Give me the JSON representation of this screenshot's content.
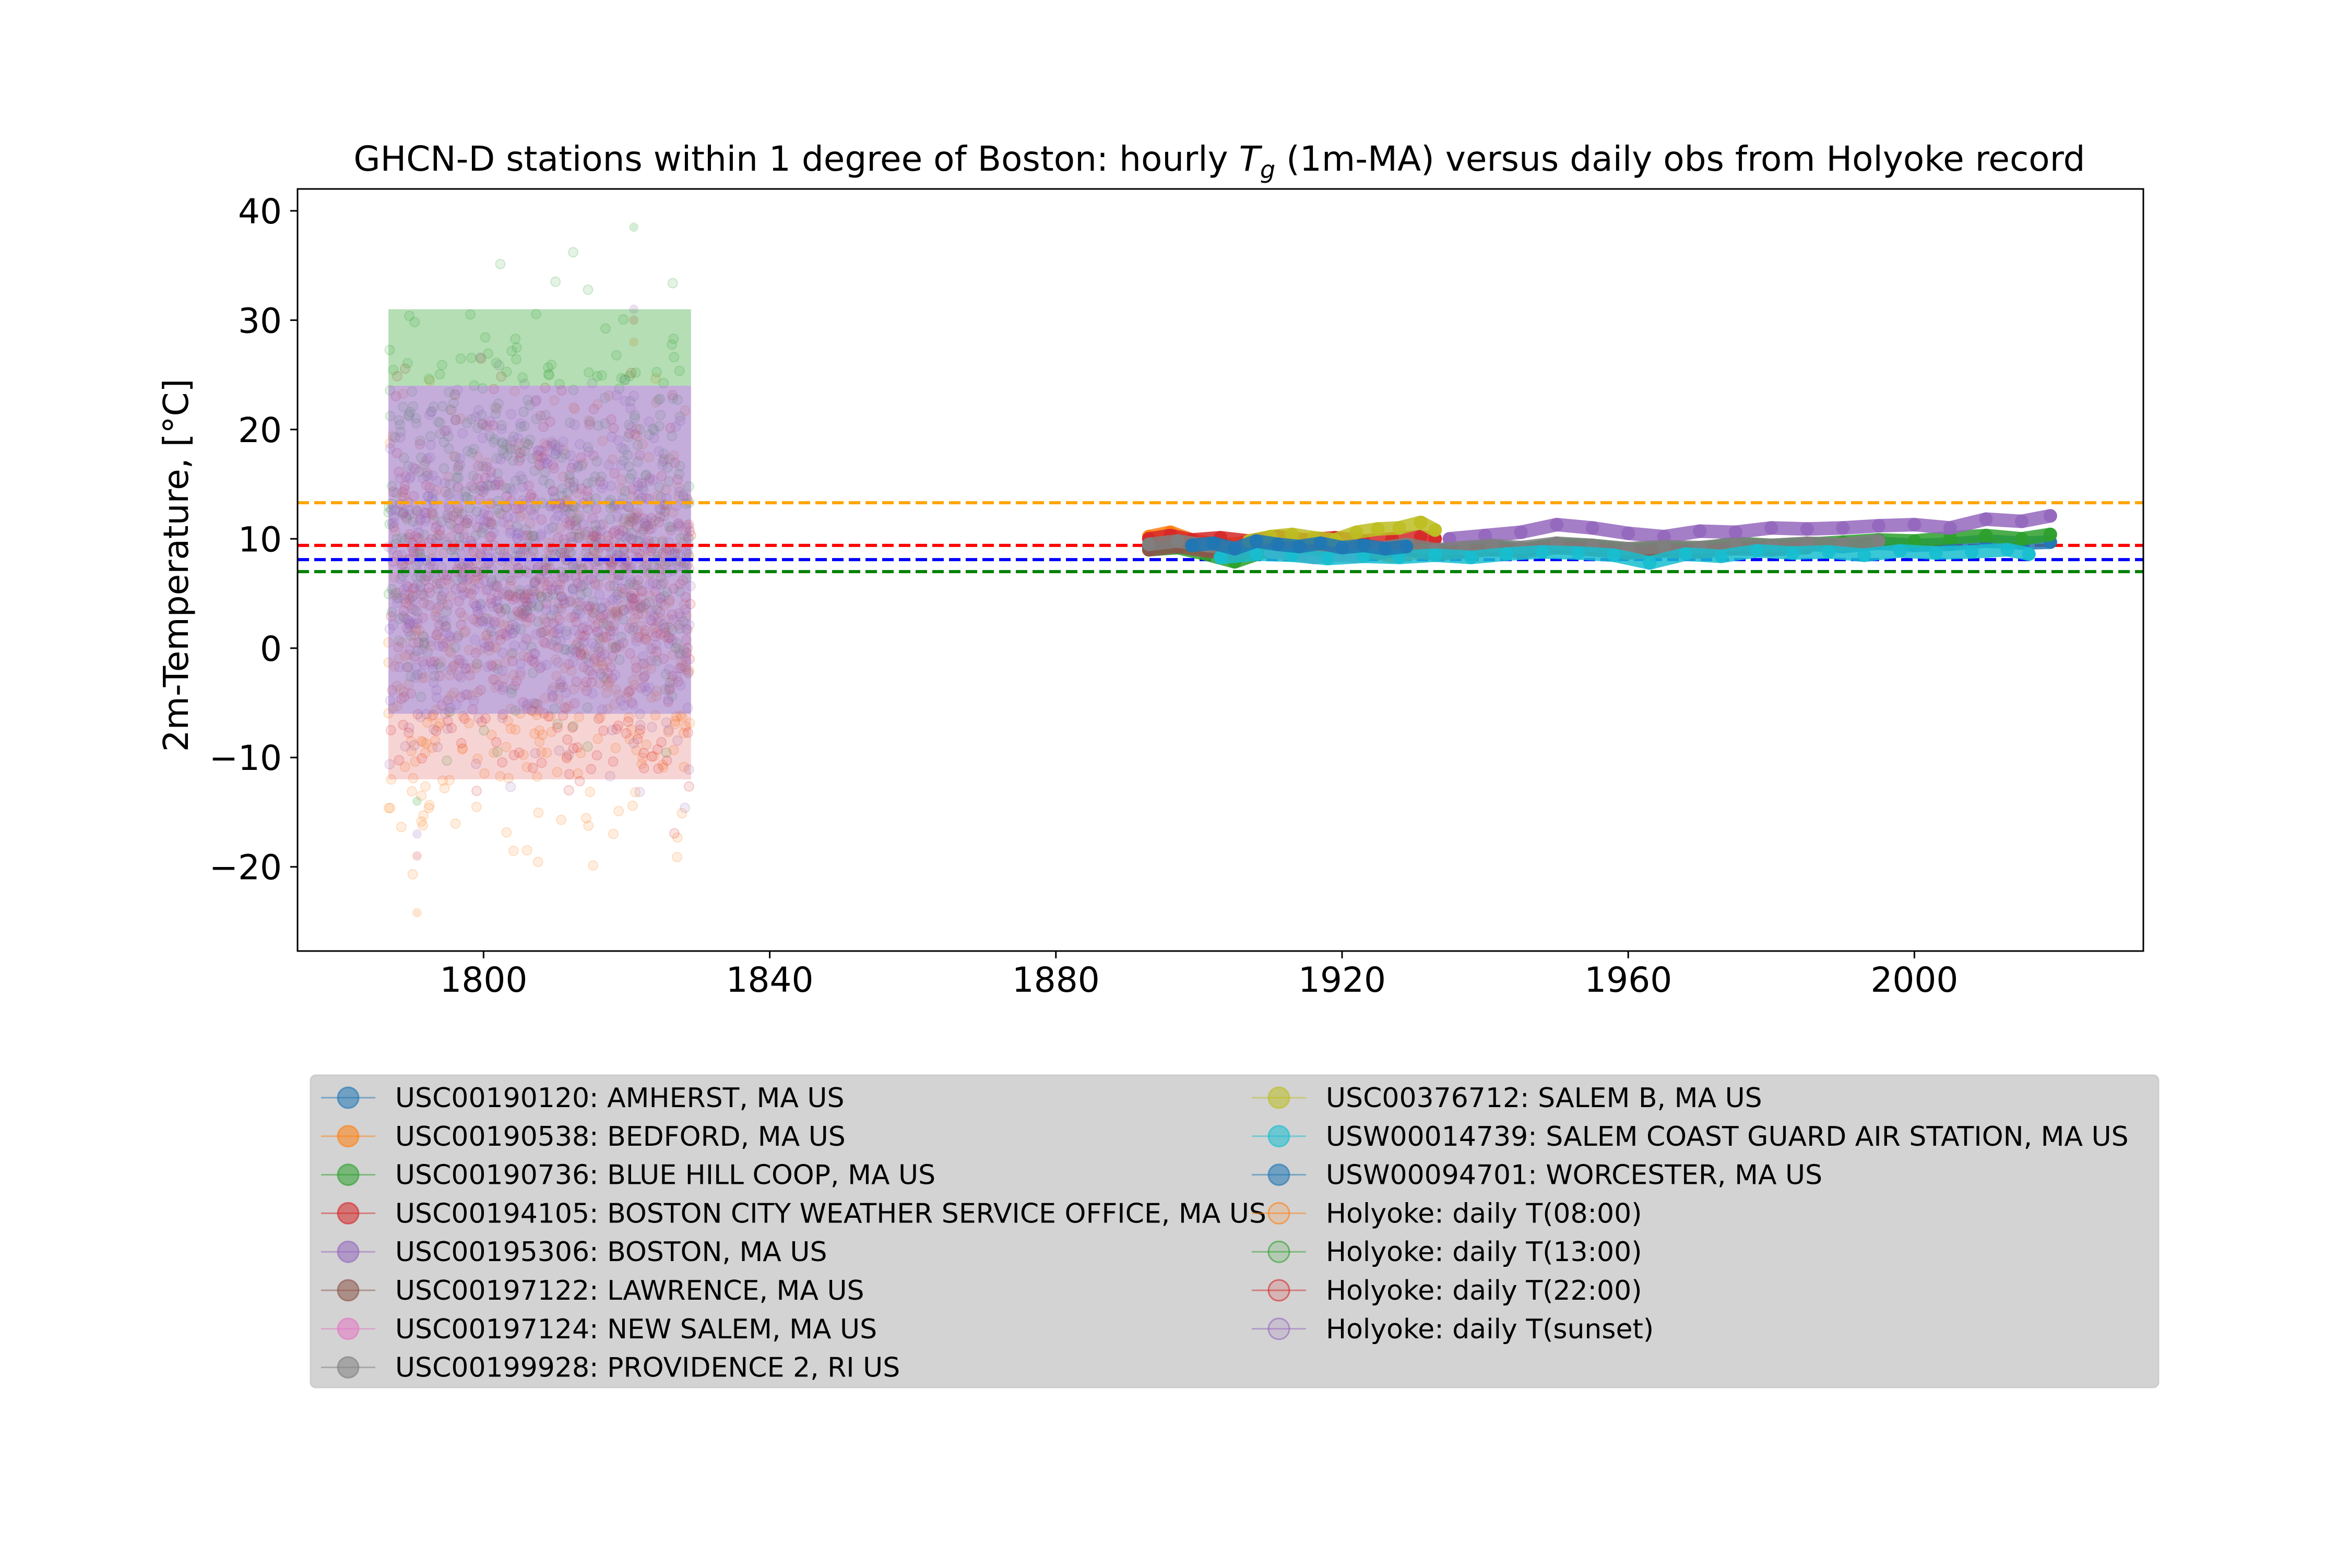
{
  "chart_data": {
    "type": "line",
    "title": {
      "prefix": "GHCN-D stations within 1 degree of Boston: hourly ",
      "symbol": "T",
      "subscript": "g",
      "suffix": " (1m-MA) versus daily obs from Holyoke record"
    },
    "xlabel": "",
    "ylabel": "2m-Temperature, [°C]",
    "xlim": [
      1774,
      2032
    ],
    "ylim": [
      -27.7,
      42.0
    ],
    "xticks": [
      1800,
      1840,
      1880,
      1920,
      1960,
      2000
    ],
    "xtick_labels": [
      "1800",
      "1840",
      "1880",
      "1920",
      "1960",
      "2000"
    ],
    "yticks": [
      -20,
      -10,
      0,
      10,
      20,
      30,
      40
    ],
    "ytick_labels": [
      "−20",
      "−10",
      "0",
      "10",
      "20",
      "30",
      "40"
    ],
    "grid": false,
    "legend_position": "below",
    "legend_background": "#d3d3d3",
    "reference_lines": [
      {
        "color": "#ffa500",
        "y": 13.3
      },
      {
        "color": "#ff0000",
        "y": 9.4
      },
      {
        "color": "#0000ff",
        "y": 8.1
      },
      {
        "color": "#008000",
        "y": 7.0
      }
    ],
    "holyoke_cloud": {
      "x_range": [
        1786.7,
        1829.0
      ],
      "summary": [
        {
          "name": "Holyoke: daily T(08:00)",
          "color": "#ff7f0e",
          "y_min": -24.2,
          "y_max": 28.0
        },
        {
          "name": "Holyoke: daily T(13:00)",
          "color": "#2ca02c",
          "y_min": -14.0,
          "y_max": 38.5
        },
        {
          "name": "Holyoke: daily T(22:00)",
          "color": "#d62728",
          "y_min": -19.0,
          "y_max": 30.0
        },
        {
          "name": "Holyoke: daily T(sunset)",
          "color": "#9467bd",
          "y_min": -17.0,
          "y_max": 31.0
        }
      ]
    },
    "series": [
      {
        "name": "USC00190120: AMHERST, MA US",
        "color": "#1f77b4",
        "x": [
          1893,
          1897,
          1901,
          1905,
          1909,
          1913,
          1917,
          1921,
          1925,
          1929,
          1933,
          1937,
          1941,
          1945,
          1950,
          1955,
          1960,
          1965,
          1970,
          1975,
          1980,
          1985,
          1990,
          1995,
          2000,
          2005,
          2010,
          2015,
          2019
        ],
        "y": [
          9.2,
          9.5,
          9.3,
          9.0,
          9.6,
          9.1,
          8.8,
          9.2,
          9.0,
          9.4,
          8.9,
          9.1,
          9.3,
          9.0,
          9.4,
          9.2,
          8.9,
          9.1,
          9.0,
          9.3,
          9.2,
          9.5,
          9.3,
          9.6,
          9.4,
          9.5,
          9.8,
          9.6,
          9.7
        ]
      },
      {
        "name": "USC00190538: BEDFORD, MA US",
        "color": "#ff7f0e",
        "x": [
          1893,
          1896,
          1899,
          1903,
          1907,
          1911,
          1915,
          1919,
          1923,
          1927,
          1931
        ],
        "y": [
          10.2,
          10.6,
          9.9,
          9.4,
          9.7,
          9.5,
          9.2,
          8.6,
          9.0,
          8.4,
          8.8
        ]
      },
      {
        "name": "USC00190736: BLUE HILL COOP, MA US",
        "color": "#2ca02c",
        "x": [
          1893,
          1897,
          1901,
          1905,
          1909,
          1913,
          1917,
          1921,
          1925,
          1929,
          1933,
          1937,
          1941,
          1945,
          1950,
          1955,
          1960,
          1965,
          1970,
          1975,
          1980,
          1985,
          1990,
          1995,
          2000,
          2005,
          2010,
          2015,
          2019
        ],
        "y": [
          9.0,
          9.2,
          8.6,
          7.9,
          8.8,
          9.0,
          8.7,
          9.1,
          8.8,
          9.3,
          8.7,
          9.0,
          9.2,
          9.0,
          9.5,
          9.4,
          9.0,
          9.2,
          9.1,
          9.6,
          9.4,
          9.5,
          9.7,
          9.9,
          9.8,
          10.1,
          10.3,
          10.0,
          10.4
        ]
      },
      {
        "name": "USC00194105: BOSTON CITY WEATHER SERVICE OFFICE, MA US",
        "color": "#d62728",
        "x": [
          1893,
          1896,
          1899,
          1903,
          1907,
          1911,
          1915,
          1919,
          1923,
          1927,
          1931,
          1933
        ],
        "y": [
          10.0,
          10.3,
          9.9,
          10.1,
          9.8,
          10.2,
          9.9,
          10.1,
          9.8,
          10.0,
          10.2,
          10.0
        ]
      },
      {
        "name": "USC00195306: BOSTON, MA US",
        "color": "#9467bd",
        "x": [
          1935,
          1940,
          1945,
          1950,
          1955,
          1960,
          1965,
          1970,
          1975,
          1980,
          1985,
          1990,
          1995,
          2000,
          2005,
          2010,
          2015,
          2019
        ],
        "y": [
          10.0,
          10.3,
          10.6,
          11.3,
          11.0,
          10.5,
          10.2,
          10.7,
          10.6,
          11.0,
          10.9,
          11.0,
          11.2,
          11.3,
          11.0,
          11.8,
          11.6,
          12.1
        ]
      },
      {
        "name": "USC00197122: LAWRENCE, MA US",
        "color": "#8c564b",
        "x": [
          1893,
          1897,
          1901,
          1905,
          1909,
          1913,
          1917,
          1921,
          1925,
          1929,
          1933,
          1937,
          1941,
          1945,
          1950,
          1955,
          1960,
          1965,
          1970,
          1975,
          1980,
          1985
        ],
        "y": [
          9.0,
          9.3,
          8.9,
          8.6,
          9.0,
          8.8,
          8.5,
          8.9,
          8.7,
          9.0,
          8.6,
          8.8,
          9.0,
          8.8,
          9.2,
          9.0,
          8.7,
          8.9,
          8.8,
          9.1,
          9.0,
          9.2
        ]
      },
      {
        "name": "USC00197124: NEW SALEM, MA US",
        "color": "#e377c2",
        "x": [
          1910,
          1913,
          1916,
          1919,
          1922
        ],
        "y": [
          8.8,
          8.6,
          8.3,
          8.5,
          8.4
        ]
      },
      {
        "name": "USC00199928: PROVIDENCE 2, RI US",
        "color": "#7f7f7f",
        "x": [
          1893,
          1897,
          1901,
          1905,
          1909,
          1913,
          1917,
          1921,
          1925,
          1929,
          1933,
          1937,
          1941,
          1945,
          1950,
          1955,
          1960,
          1965,
          1970,
          1975,
          1980,
          1985,
          1990,
          1995
        ],
        "y": [
          9.5,
          9.8,
          9.4,
          9.1,
          9.6,
          9.4,
          9.0,
          9.3,
          9.1,
          9.5,
          9.0,
          9.2,
          9.4,
          9.2,
          9.6,
          9.4,
          9.1,
          9.3,
          9.2,
          9.5,
          9.4,
          9.6,
          9.5,
          9.8
        ]
      },
      {
        "name": "USC00376712: SALEM B, MA US",
        "color": "#bcbd22",
        "x": [
          1907,
          1910,
          1913,
          1916,
          1919,
          1922,
          1925,
          1928,
          1931,
          1933
        ],
        "y": [
          9.8,
          10.2,
          10.4,
          10.1,
          9.9,
          10.6,
          10.9,
          11.0,
          11.5,
          10.8
        ]
      },
      {
        "name": "USW00014739: SALEM COAST GUARD AIR STATION, MA US",
        "color": "#17becf",
        "x": [
          1903,
          1908,
          1913,
          1918,
          1923,
          1928,
          1933,
          1938,
          1943,
          1948,
          1953,
          1958,
          1963,
          1968,
          1973,
          1978,
          1983,
          1988,
          1993,
          1998,
          2003,
          2008,
          2013,
          2016
        ],
        "y": [
          8.3,
          8.6,
          8.5,
          8.2,
          8.4,
          8.3,
          8.5,
          8.3,
          8.6,
          8.8,
          8.7,
          8.5,
          7.8,
          8.6,
          8.4,
          8.9,
          8.7,
          8.8,
          8.5,
          8.9,
          8.7,
          8.8,
          9.0,
          8.6
        ]
      },
      {
        "name": "USW00094701: WORCESTER, MA US",
        "color": "#1f77b4",
        "x": [
          1899,
          1902,
          1905,
          1908,
          1911,
          1914,
          1917,
          1920,
          1923,
          1926,
          1929
        ],
        "y": [
          9.4,
          9.6,
          9.1,
          9.8,
          9.5,
          9.3,
          9.6,
          9.2,
          9.4,
          9.1,
          9.3
        ]
      }
    ],
    "legend_entries": [
      {
        "name": "USC00190120: AMHERST, MA US",
        "color": "#1f77b4"
      },
      {
        "name": "USC00190538: BEDFORD, MA US",
        "color": "#ff7f0e"
      },
      {
        "name": "USC00190736: BLUE HILL COOP, MA US",
        "color": "#2ca02c"
      },
      {
        "name": "USC00194105: BOSTON CITY WEATHER SERVICE OFFICE, MA US",
        "color": "#d62728"
      },
      {
        "name": "USC00195306: BOSTON, MA US",
        "color": "#9467bd"
      },
      {
        "name": "USC00197122: LAWRENCE, MA US",
        "color": "#8c564b"
      },
      {
        "name": "USC00197124: NEW SALEM, MA US",
        "color": "#e377c2"
      },
      {
        "name": "USC00199928: PROVIDENCE 2, RI US",
        "color": "#7f7f7f"
      },
      {
        "name": "USC00376712: SALEM B, MA US",
        "color": "#bcbd22"
      },
      {
        "name": "USW00014739: SALEM COAST GUARD AIR STATION, MA US",
        "color": "#17becf"
      },
      {
        "name": "USW00094701: WORCESTER, MA US",
        "color": "#1f77b4"
      },
      {
        "name": "Holyoke: daily T(08:00)",
        "color": "#ff7f0e"
      },
      {
        "name": "Holyoke: daily T(13:00)",
        "color": "#2ca02c"
      },
      {
        "name": "Holyoke: daily T(22:00)",
        "color": "#d62728"
      },
      {
        "name": "Holyoke: daily T(sunset)",
        "color": "#9467bd"
      }
    ]
  }
}
